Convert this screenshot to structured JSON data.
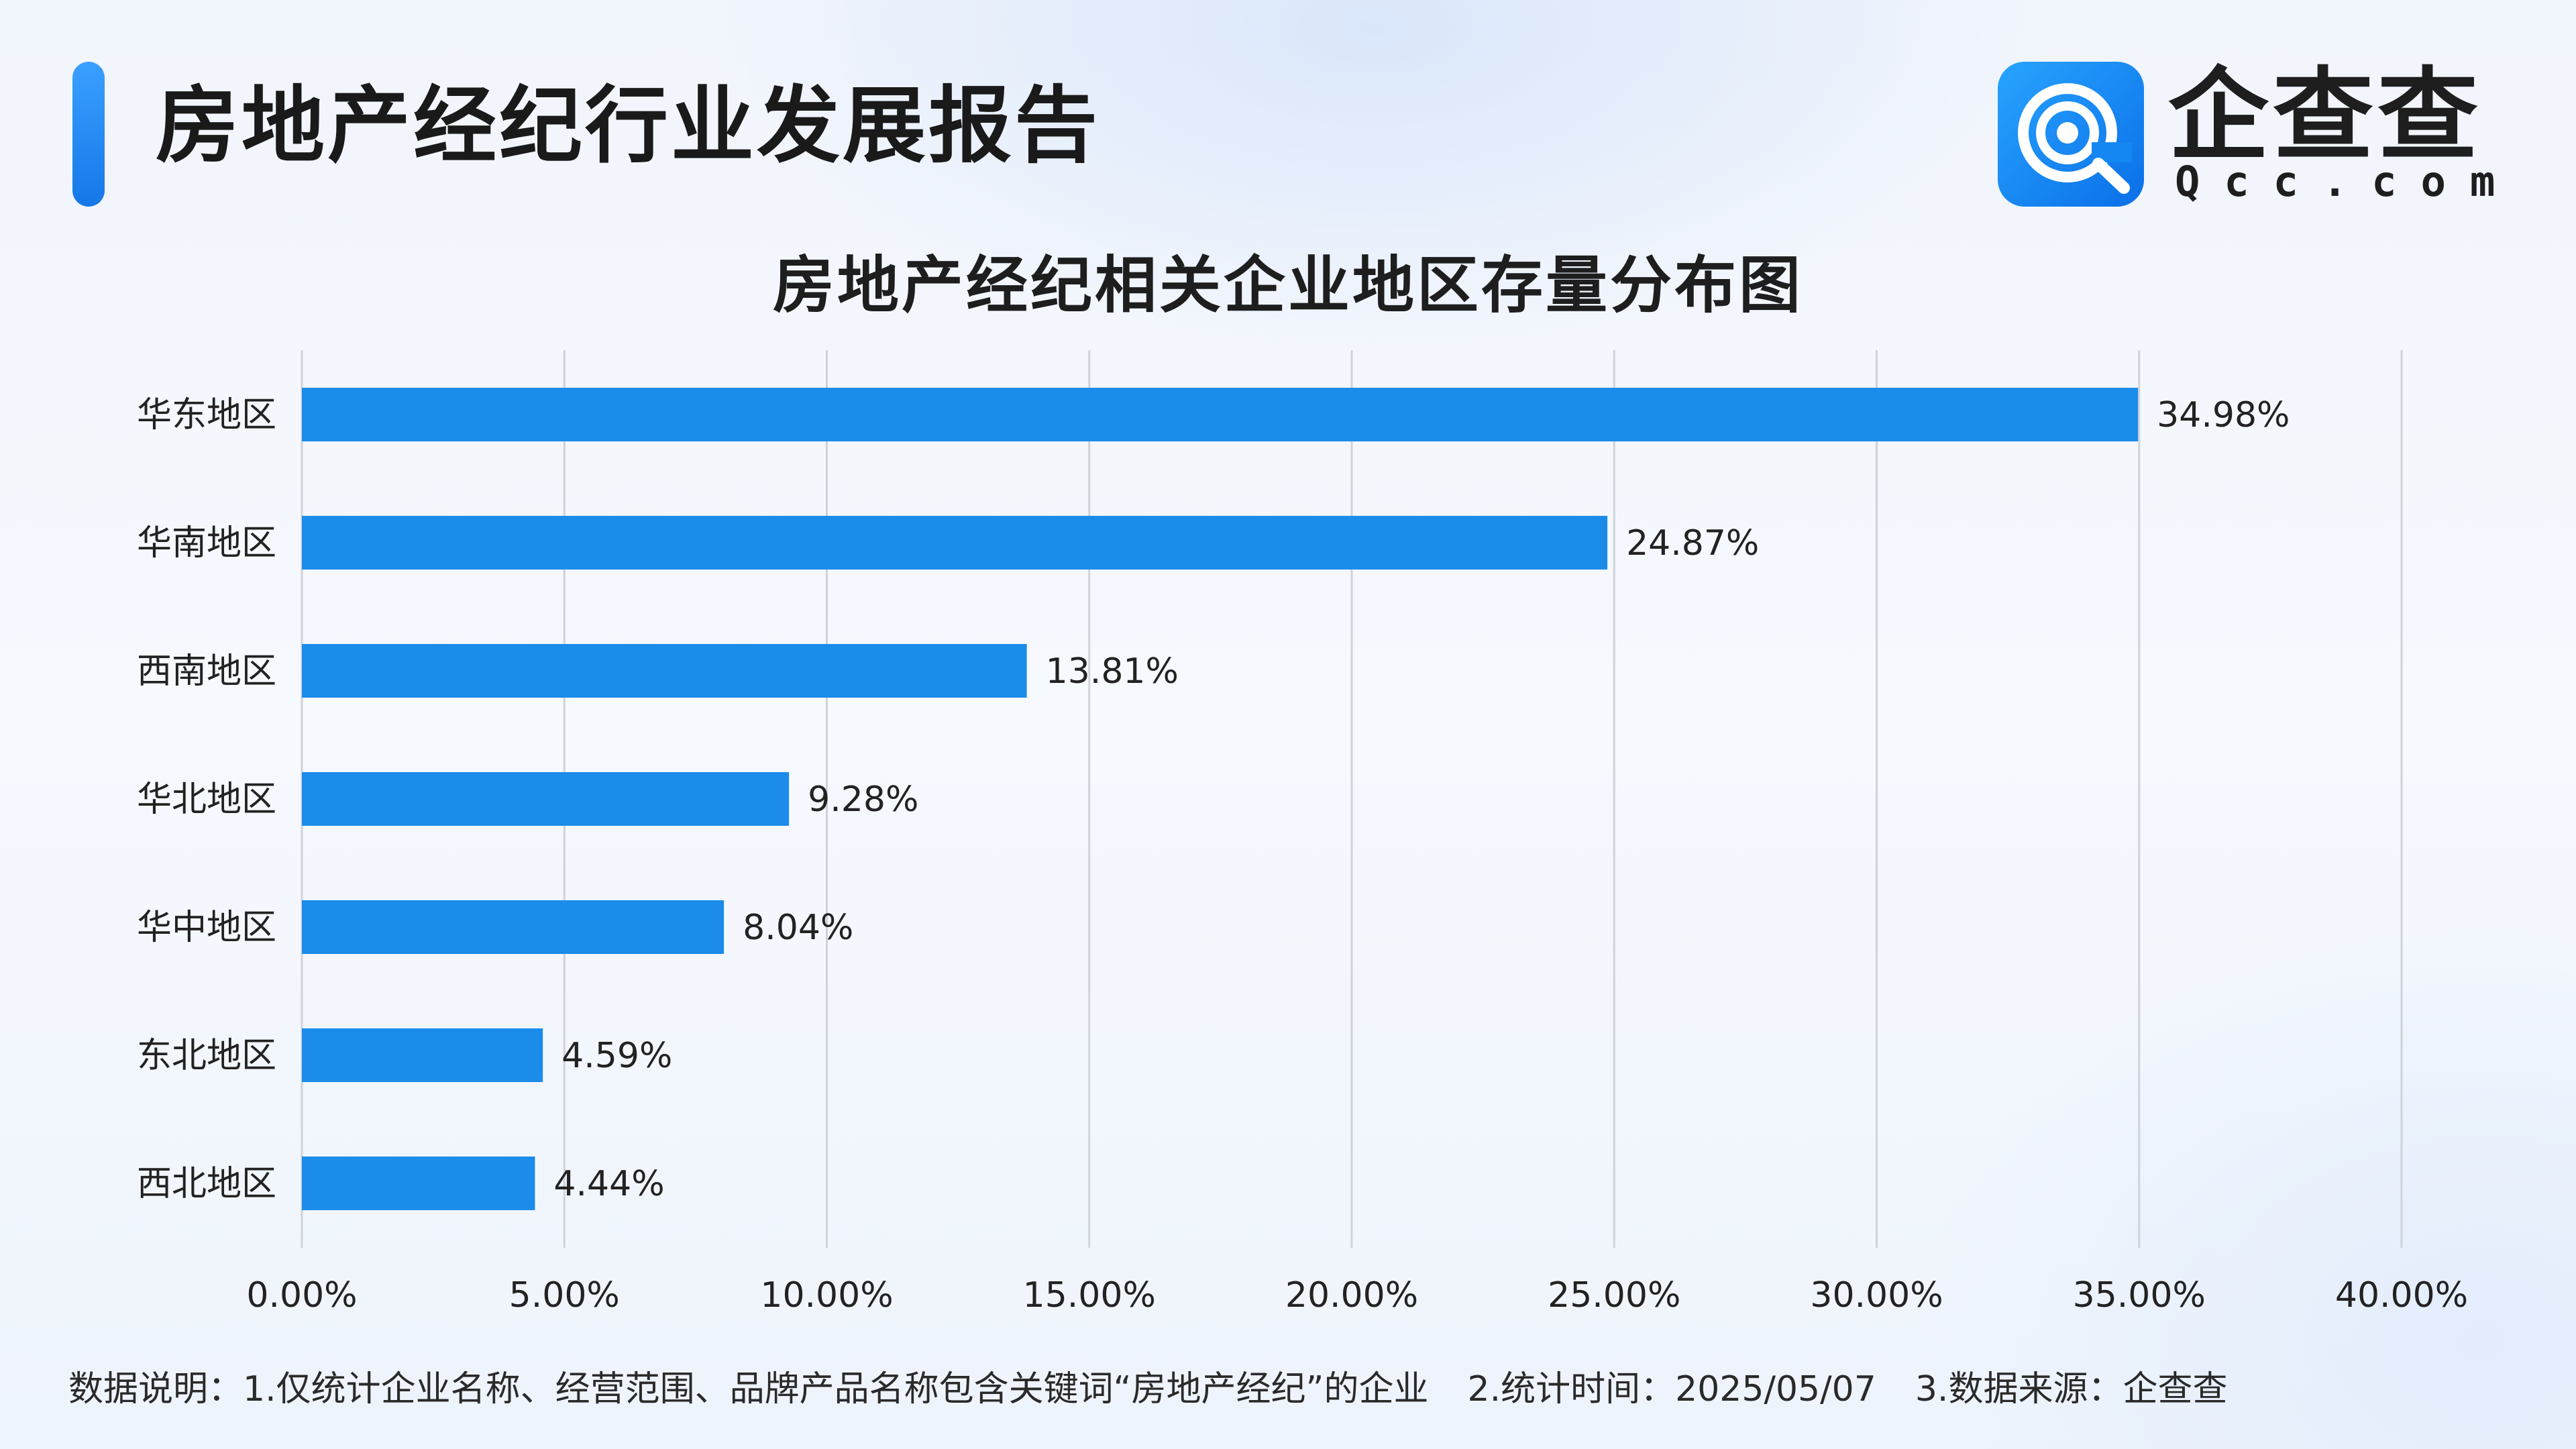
{
  "header": {
    "title": "房地产经纪行业发展报告",
    "logo_cn": "企查查",
    "logo_en": "Qcc.com"
  },
  "footer": {
    "note_1": "数据说明：1.仅统计企业名称、经营范围、品牌产品名称包含关键词“房地产经纪”的企业",
    "note_2": "2.统计时间：2025/05/07",
    "note_3": "3.数据来源：企查查"
  },
  "colors": {
    "bar": "#1b8cea",
    "grid": "#cfd3d9",
    "accent": "#1677e8"
  },
  "chart_data": {
    "type": "bar",
    "orientation": "horizontal",
    "title": "房地产经纪相关企业地区存量分布图",
    "categories": [
      "华东地区",
      "华南地区",
      "西南地区",
      "华北地区",
      "华中地区",
      "东北地区",
      "西北地区"
    ],
    "values": [
      34.98,
      24.87,
      13.81,
      9.28,
      8.04,
      4.59,
      4.44
    ],
    "value_labels": [
      "34.98%",
      "24.87%",
      "13.81%",
      "9.28%",
      "8.04%",
      "4.59%",
      "4.44%"
    ],
    "xlim": [
      0,
      40
    ],
    "x_ticks": [
      "0.00%",
      "5.00%",
      "10.00%",
      "15.00%",
      "20.00%",
      "25.00%",
      "30.00%",
      "35.00%",
      "40.00%"
    ],
    "grid": "vertical",
    "legend": "none"
  }
}
